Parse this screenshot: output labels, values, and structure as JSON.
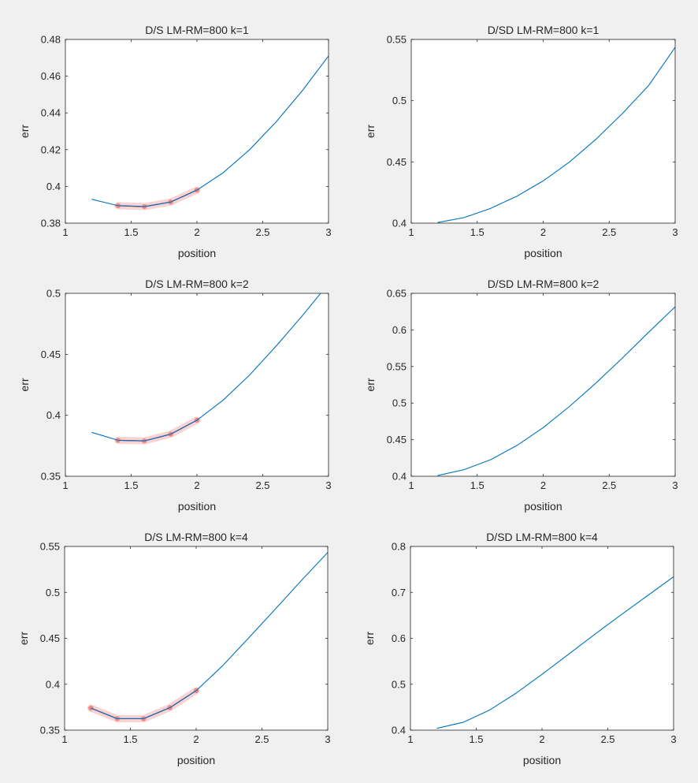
{
  "colors": {
    "background": "#f0f0f0",
    "axes_background": "#ffffff",
    "axes_edge": "#262626",
    "line": "#0072bd",
    "highlight_fill": "#f08080",
    "highlight_line": "#a2142f"
  },
  "chart_data": [
    {
      "type": "line",
      "title": "D/S LM-RM=800 k=1",
      "xlabel": "position",
      "ylabel": "err",
      "xlim": [
        1,
        3
      ],
      "ylim": [
        0.38,
        0.48
      ],
      "xticks": [
        1,
        1.5,
        2,
        2.5,
        3
      ],
      "xtick_labels": [
        "1",
        "1.5",
        "2",
        "2.5",
        "3"
      ],
      "yticks": [
        0.38,
        0.4,
        0.42,
        0.44,
        0.46,
        0.48
      ],
      "ytick_labels": [
        "0.38",
        "0.4",
        "0.42",
        "0.44",
        "0.46",
        "0.48"
      ],
      "grid": false,
      "series": [
        {
          "x": [
            1.2,
            1.4,
            1.6,
            1.8,
            2.0,
            2.2,
            2.4,
            2.6,
            2.8,
            3.0
          ],
          "y": [
            0.393,
            0.3895,
            0.389,
            0.3915,
            0.398,
            0.4075,
            0.42,
            0.435,
            0.452,
            0.471
          ]
        }
      ],
      "highlight": {
        "x": [
          1.4,
          1.6,
          1.8,
          2.0
        ],
        "y": [
          0.3895,
          0.389,
          0.3915,
          0.398
        ]
      }
    },
    {
      "type": "line",
      "title": "D/SD LM-RM=800 k=1",
      "xlabel": "position",
      "ylabel": "err",
      "xlim": [
        1,
        3
      ],
      "ylim": [
        0.4,
        0.55
      ],
      "xticks": [
        1,
        1.5,
        2,
        2.5,
        3
      ],
      "xtick_labels": [
        "1",
        "1.5",
        "2",
        "2.5",
        "3"
      ],
      "yticks": [
        0.4,
        0.45,
        0.5,
        0.55
      ],
      "ytick_labels": [
        "0.4",
        "0.45",
        "0.5",
        "0.55"
      ],
      "grid": false,
      "series": [
        {
          "x": [
            1.2,
            1.4,
            1.6,
            1.8,
            2.0,
            2.2,
            2.4,
            2.6,
            2.8,
            3.0
          ],
          "y": [
            0.4005,
            0.4045,
            0.412,
            0.422,
            0.4345,
            0.45,
            0.4685,
            0.4895,
            0.5125,
            0.5435
          ]
        }
      ]
    },
    {
      "type": "line",
      "title": "D/S LM-RM=800 k=2",
      "xlabel": "position",
      "ylabel": "err",
      "xlim": [
        1,
        3
      ],
      "ylim": [
        0.35,
        0.5
      ],
      "xticks": [
        1,
        1.5,
        2,
        2.5,
        3
      ],
      "xtick_labels": [
        "1",
        "1.5",
        "2",
        "2.5",
        "3"
      ],
      "yticks": [
        0.35,
        0.4,
        0.45,
        0.5
      ],
      "ytick_labels": [
        "0.35",
        "0.4",
        "0.45",
        "0.5"
      ],
      "grid": false,
      "series": [
        {
          "x": [
            1.2,
            1.4,
            1.6,
            1.8,
            2.0,
            2.2,
            2.4,
            2.6,
            2.8,
            3.0
          ],
          "y": [
            0.386,
            0.3795,
            0.379,
            0.3845,
            0.396,
            0.4125,
            0.433,
            0.4565,
            0.4815,
            0.508
          ]
        }
      ],
      "highlight": {
        "x": [
          1.4,
          1.6,
          1.8,
          2.0
        ],
        "y": [
          0.3795,
          0.379,
          0.3845,
          0.396
        ]
      }
    },
    {
      "type": "line",
      "title": "D/SD LM-RM=800 k=2",
      "xlabel": "position",
      "ylabel": "err",
      "xlim": [
        1,
        3
      ],
      "ylim": [
        0.4,
        0.65
      ],
      "xticks": [
        1,
        1.5,
        2,
        2.5,
        3
      ],
      "xtick_labels": [
        "1",
        "1.5",
        "2",
        "2.5",
        "3"
      ],
      "yticks": [
        0.4,
        0.45,
        0.5,
        0.55,
        0.6,
        0.65
      ],
      "ytick_labels": [
        "0.4",
        "0.45",
        "0.5",
        "0.55",
        "0.6",
        "0.65"
      ],
      "grid": false,
      "series": [
        {
          "x": [
            1.2,
            1.4,
            1.6,
            1.8,
            2.0,
            2.2,
            2.4,
            2.6,
            2.8,
            3.0
          ],
          "y": [
            0.401,
            0.409,
            0.4225,
            0.442,
            0.4665,
            0.4955,
            0.5275,
            0.5615,
            0.597,
            0.6315
          ]
        }
      ]
    },
    {
      "type": "line",
      "title": "D/S LM-RM=800 k=4",
      "xlabel": "position",
      "ylabel": "err",
      "xlim": [
        1,
        3
      ],
      "ylim": [
        0.35,
        0.55
      ],
      "xticks": [
        1,
        1.5,
        2,
        2.5,
        3
      ],
      "xtick_labels": [
        "1",
        "1.5",
        "2",
        "2.5",
        "3"
      ],
      "yticks": [
        0.35,
        0.4,
        0.45,
        0.5,
        0.55
      ],
      "ytick_labels": [
        "0.35",
        "0.4",
        "0.45",
        "0.5",
        "0.55"
      ],
      "grid": false,
      "series": [
        {
          "x": [
            1.2,
            1.4,
            1.6,
            1.8,
            2.0,
            2.2,
            2.4,
            2.6,
            2.8,
            3.0
          ],
          "y": [
            0.374,
            0.3625,
            0.3625,
            0.3745,
            0.393,
            0.42,
            0.4505,
            0.4815,
            0.513,
            0.5435
          ]
        }
      ],
      "highlight": {
        "x": [
          1.2,
          1.4,
          1.6,
          1.8,
          2.0
        ],
        "y": [
          0.374,
          0.3625,
          0.3625,
          0.3745,
          0.393
        ]
      }
    },
    {
      "type": "line",
      "title": "D/SD LM-RM=800 k=4",
      "xlabel": "position",
      "ylabel": "err",
      "xlim": [
        1,
        3
      ],
      "ylim": [
        0.4,
        0.8
      ],
      "xticks": [
        1,
        1.5,
        2,
        2.5,
        3
      ],
      "xtick_labels": [
        "1",
        "1.5",
        "2",
        "2.5",
        "3"
      ],
      "yticks": [
        0.4,
        0.5,
        0.6,
        0.7,
        0.8
      ],
      "ytick_labels": [
        "0.4",
        "0.5",
        "0.6",
        "0.7",
        "0.8"
      ],
      "grid": false,
      "series": [
        {
          "x": [
            1.2,
            1.4,
            1.6,
            1.8,
            2.0,
            2.2,
            2.4,
            2.6,
            2.8,
            3.0
          ],
          "y": [
            0.404,
            0.417,
            0.4435,
            0.48,
            0.5215,
            0.565,
            0.6085,
            0.651,
            0.6925,
            0.734
          ]
        }
      ]
    }
  ]
}
